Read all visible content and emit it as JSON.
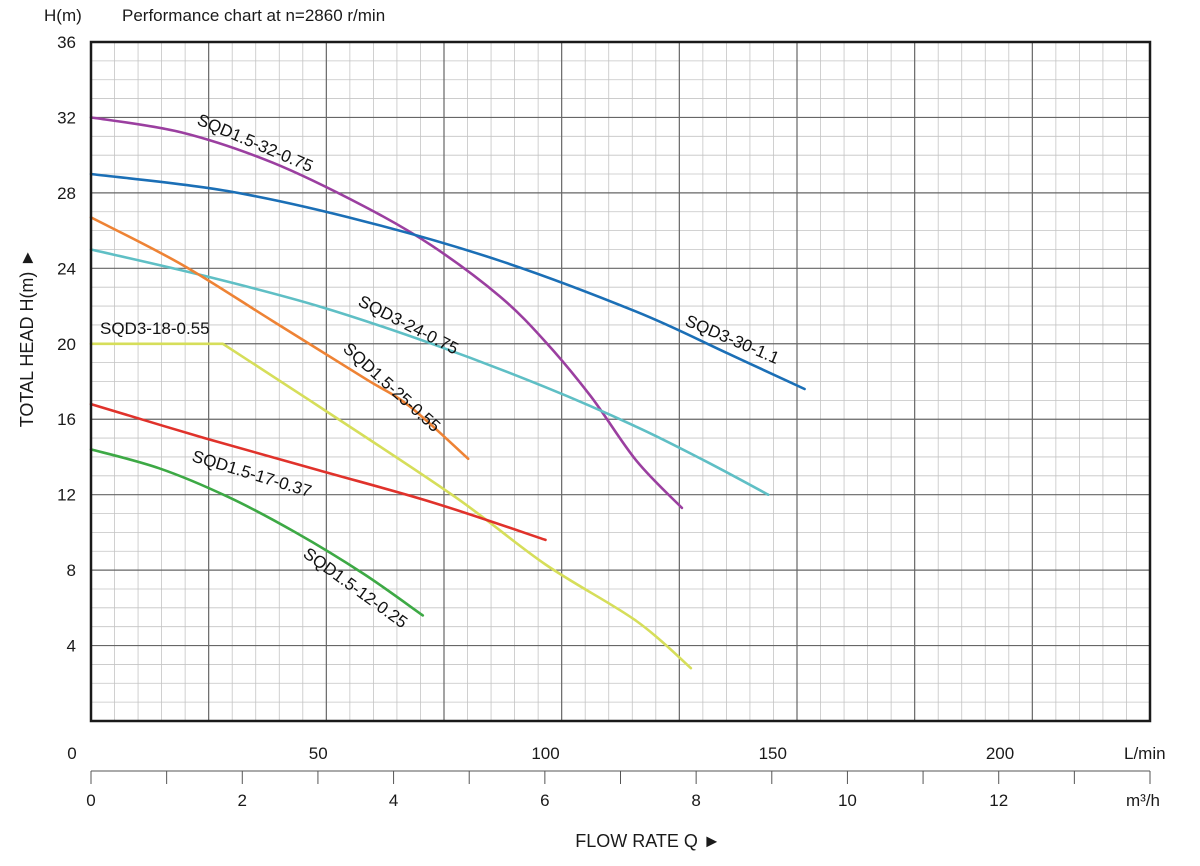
{
  "chart_data": {
    "type": "line",
    "title": "Performance chart at n=2860 r/min",
    "y_unit": "H(m)",
    "ylabel": "TOTAL HEAD H(m) ►",
    "xlabel": "FLOW RATE Q ►",
    "x_unit_lmin": "L/min",
    "x_unit_m3h": "m³/h",
    "ylim": [
      0,
      36
    ],
    "y_ticks": [
      "4",
      "8",
      "12",
      "16",
      "20",
      "24",
      "28",
      "32",
      "36"
    ],
    "xlim_lmin": [
      0,
      233
    ],
    "x_ticks_lmin": [
      "0",
      "50",
      "100",
      "150",
      "200"
    ],
    "xlim_m3h": [
      0,
      14
    ],
    "x_ticks_m3h": [
      "0",
      "2",
      "4",
      "6",
      "8",
      "10",
      "12"
    ],
    "grid": true,
    "series": [
      {
        "name": "SQD1.5-32-0.75",
        "color": "#9b3fa0",
        "points": [
          [
            0,
            32
          ],
          [
            20,
            31.2
          ],
          [
            40,
            29.6
          ],
          [
            60,
            27.3
          ],
          [
            75,
            25.2
          ],
          [
            90,
            22.5
          ],
          [
            100,
            20.1
          ],
          [
            110,
            17.2
          ],
          [
            120,
            13.8
          ],
          [
            130,
            11.3
          ]
        ]
      },
      {
        "name": "SQD3-30-1.1",
        "color": "#1b6fb6",
        "points": [
          [
            0,
            29
          ],
          [
            30,
            28.1
          ],
          [
            60,
            26.5
          ],
          [
            90,
            24.4
          ],
          [
            120,
            21.7
          ],
          [
            140,
            19.5
          ],
          [
            157,
            17.6
          ]
        ]
      },
      {
        "name": "SQD3-24-0.75",
        "color": "#5fbfc5",
        "points": [
          [
            0,
            25
          ],
          [
            25,
            23.6
          ],
          [
            50,
            22
          ],
          [
            75,
            20
          ],
          [
            100,
            17.7
          ],
          [
            120,
            15.6
          ],
          [
            135,
            13.8
          ],
          [
            149,
            12
          ]
        ]
      },
      {
        "name": "SQD1.5-25-0.55",
        "color": "#ee8335",
        "points": [
          [
            0,
            26.7
          ],
          [
            20,
            24.2
          ],
          [
            40,
            21.2
          ],
          [
            60,
            18.2
          ],
          [
            70,
            16.7
          ],
          [
            83,
            13.9
          ]
        ]
      },
      {
        "name": "SQD3-18-0.55",
        "color": "#d6de5a",
        "points": [
          [
            0,
            20
          ],
          [
            29,
            20
          ],
          [
            50,
            16.7
          ],
          [
            80,
            11.9
          ],
          [
            100,
            8.3
          ],
          [
            120,
            5.3
          ],
          [
            132,
            2.8
          ]
        ]
      },
      {
        "name": "SQD1.5-17-0.37",
        "color": "#e0322b",
        "points": [
          [
            0,
            16.8
          ],
          [
            25,
            15
          ],
          [
            50,
            13.3
          ],
          [
            75,
            11.6
          ],
          [
            100,
            9.6
          ]
        ]
      },
      {
        "name": "SQD1.5-12-0.25",
        "color": "#3da945",
        "points": [
          [
            0,
            14.4
          ],
          [
            15,
            13.4
          ],
          [
            30,
            11.9
          ],
          [
            45,
            10
          ],
          [
            60,
            7.8
          ],
          [
            73,
            5.6
          ]
        ]
      }
    ]
  }
}
